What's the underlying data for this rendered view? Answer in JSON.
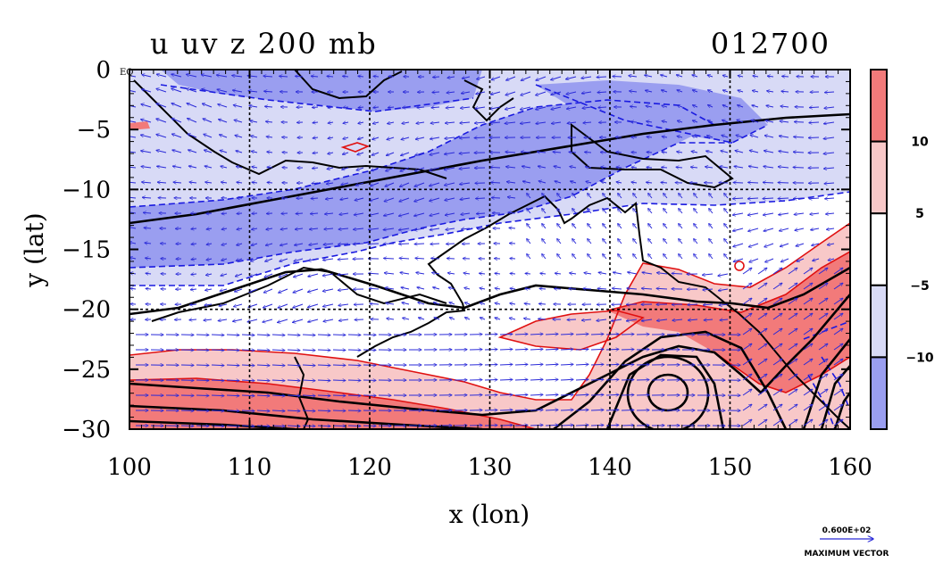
{
  "plot": {
    "title_left": "u uv z 200 mb",
    "title_right": "012700",
    "xlabel": "x (lon)",
    "ylabel": "y (lat)",
    "eq_label": "EQ",
    "x_ticks": [
      "100",
      "110",
      "120",
      "130",
      "140",
      "150",
      "160"
    ],
    "y_ticks": [
      "0",
      "−5",
      "−10",
      "−15",
      "−20",
      "−25",
      "−30"
    ],
    "x_range": [
      100,
      160
    ],
    "y_range": [
      -30,
      0
    ],
    "grid_lon": [
      110,
      120,
      130,
      140,
      150
    ],
    "grid_lat": [
      -10,
      -20
    ]
  },
  "colorbar": {
    "labels": [
      "10",
      "5",
      "−5",
      "−10"
    ],
    "colors": [
      "#f27a7a",
      "#f8c8c8",
      "#ffffff",
      "#d8daf6",
      "#9a9ef0"
    ]
  },
  "vector_key": {
    "value": "0.600E+02",
    "caption": "MAXIMUM VECTOR"
  },
  "colors": {
    "positive_strong": "#f27a7a",
    "positive_weak": "#f8c8c8",
    "negative_weak": "#d8daf6",
    "negative_strong": "#9a9ef0",
    "vectors": "#2a2ad8",
    "contour_pos": "#e01010",
    "contour_neg": "#1a1ae0",
    "height_contour": "#000000"
  }
}
